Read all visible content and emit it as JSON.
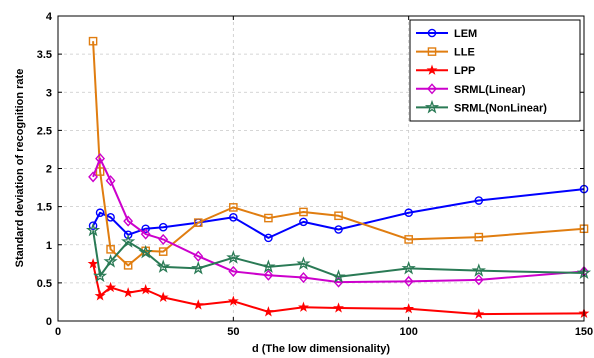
{
  "chart_data": {
    "type": "line",
    "xlabel": "d (The low dimensionality)",
    "ylabel": "Standard deviation of recognition rate",
    "xlim": [
      0,
      150
    ],
    "ylim": [
      0,
      4
    ],
    "xticks": [
      0,
      50,
      100,
      150
    ],
    "yticks": [
      0,
      0.5,
      1,
      1.5,
      2,
      2.5,
      3,
      3.5,
      4
    ],
    "ytick_labels": [
      "0",
      "0.5",
      "1",
      "1.5",
      "2",
      "2.5",
      "3",
      "3.5",
      "4"
    ],
    "grid": true,
    "legend_position": "top-right",
    "x": [
      10,
      12,
      15,
      20,
      25,
      30,
      40,
      50,
      60,
      70,
      80,
      100,
      120,
      150
    ],
    "series": [
      {
        "name": "LEM",
        "color": "#0000ff",
        "marker": "circle",
        "values": [
          1.25,
          1.42,
          1.36,
          1.13,
          1.21,
          1.23,
          1.29,
          1.36,
          1.09,
          1.3,
          1.2,
          1.42,
          1.58,
          1.73
        ]
      },
      {
        "name": "LLE",
        "color": "#e07d10",
        "marker": "square",
        "values": [
          3.67,
          1.96,
          0.94,
          0.73,
          0.92,
          0.91,
          1.29,
          1.49,
          1.35,
          1.43,
          1.38,
          1.07,
          1.1,
          1.21
        ]
      },
      {
        "name": "LPP",
        "color": "#ff0000",
        "marker": "star",
        "values": [
          0.75,
          0.33,
          0.44,
          0.37,
          0.41,
          0.31,
          0.21,
          0.26,
          0.12,
          0.18,
          0.17,
          0.16,
          0.09,
          0.1
        ]
      },
      {
        "name": "SRML(Linear)",
        "color": "#cc00cc",
        "marker": "diamond",
        "values": [
          1.89,
          2.13,
          1.84,
          1.31,
          1.14,
          1.07,
          0.85,
          0.65,
          0.6,
          0.57,
          0.51,
          0.52,
          0.54,
          0.65
        ]
      },
      {
        "name": "SRML(NonLinear)",
        "color": "#2a7a55",
        "marker": "pentagram",
        "values": [
          1.19,
          0.59,
          0.78,
          1.04,
          0.9,
          0.71,
          0.69,
          0.83,
          0.71,
          0.75,
          0.58,
          0.69,
          0.66,
          0.63
        ]
      }
    ]
  }
}
